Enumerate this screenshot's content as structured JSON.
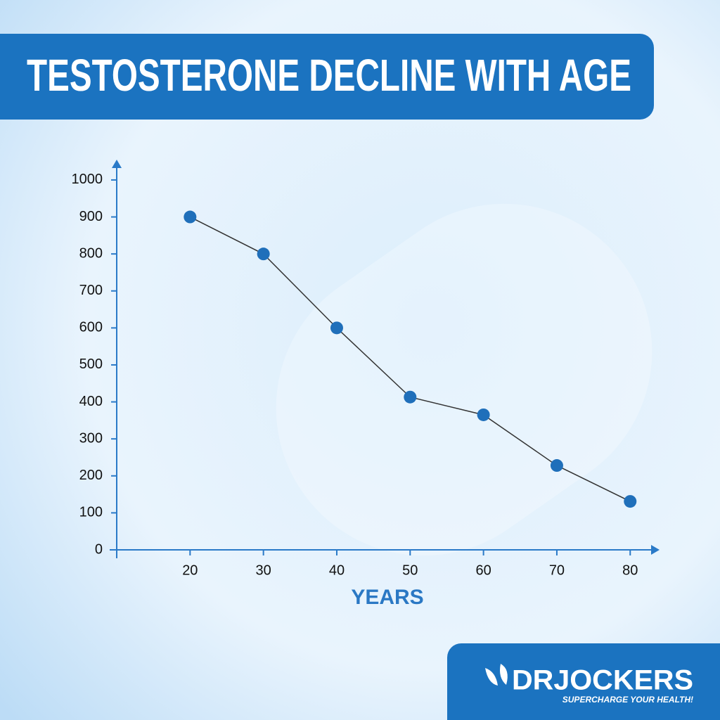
{
  "chart_data": {
    "type": "line",
    "title": "TESTOSTERONE DECLINE WITH AGE",
    "x_label": "YEARS",
    "x": [
      20,
      30,
      40,
      50,
      60,
      70,
      80
    ],
    "values": [
      900,
      800,
      600,
      413,
      365,
      228,
      131
    ],
    "color": "#1f6fba",
    "line_color": "#333333",
    "xlim": [
      10,
      84
    ],
    "xticks": [
      20,
      30,
      40,
      50,
      60,
      70,
      80
    ],
    "ylim": [
      0,
      1055
    ],
    "yticks": [
      0,
      100,
      200,
      300,
      400,
      500,
      600,
      700,
      800,
      900,
      1000
    ]
  },
  "brand": {
    "name": "DRJOCKERS",
    "tagline": "SUPERCHARGE YOUR HEALTH!"
  }
}
